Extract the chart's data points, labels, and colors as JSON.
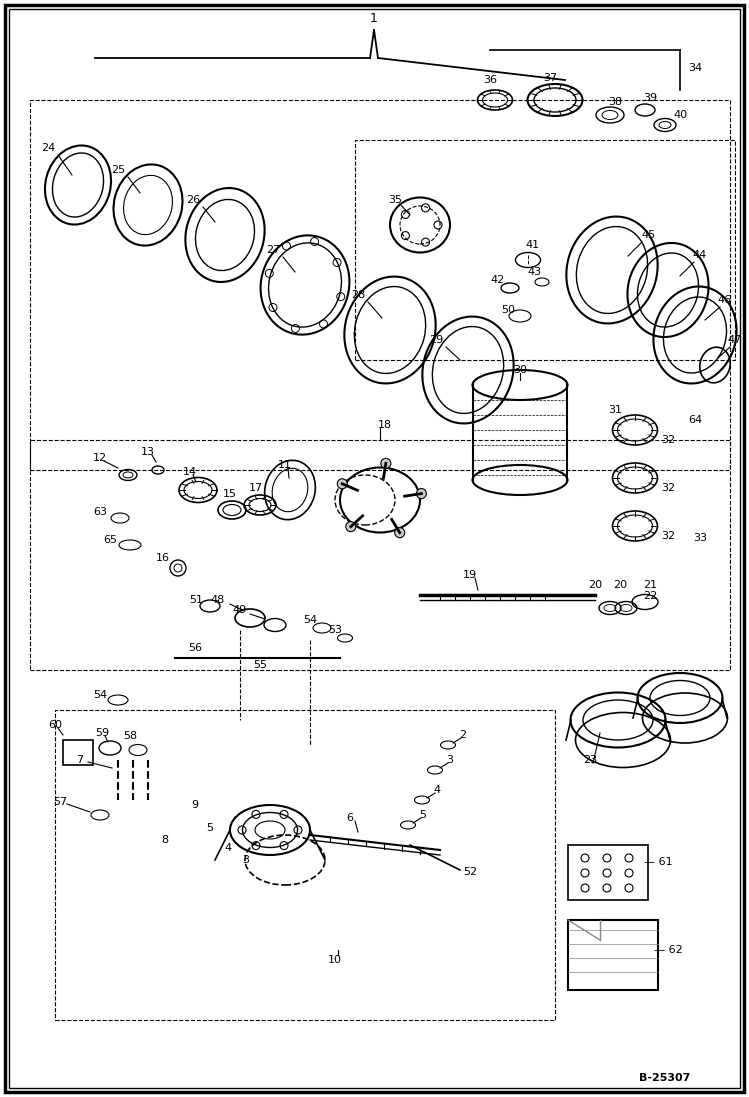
{
  "title": "1",
  "ref_number": "B-25307",
  "bg_color": "#ffffff",
  "border_color": "#000000",
  "fig_width": 7.49,
  "fig_height": 10.97,
  "dpi": 100
}
